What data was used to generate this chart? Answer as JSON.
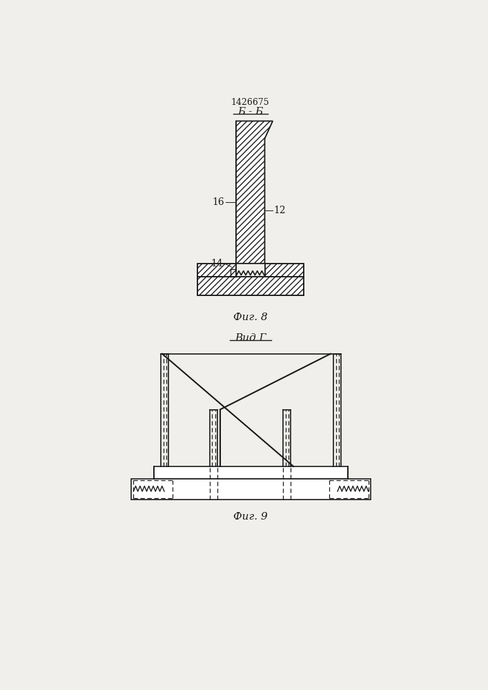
{
  "title": "1426675",
  "fig8_label": "Б - Б",
  "fig8_caption": "Фиг. 8",
  "fig9_label": "Вид Г",
  "fig9_caption": "Фиг. 9",
  "label_16": "16",
  "label_12": "12",
  "label_14": "14",
  "bg_color": "#f0efeb",
  "line_color": "#1a1a1a"
}
